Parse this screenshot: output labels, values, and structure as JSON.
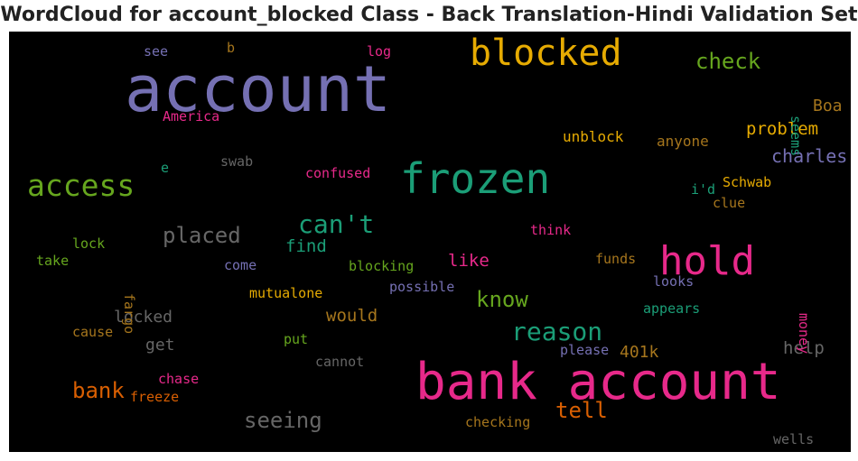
{
  "chart_data": {
    "type": "wordcloud",
    "title": "WordCloud for account_blocked Class - Back Translation-Hindi Validation Set",
    "background": "#000000",
    "colormap": "Dark2",
    "words": [
      {
        "text": "account",
        "color": "#7570b3"
      },
      {
        "text": "blocked",
        "color": "#e6ab02"
      },
      {
        "text": "bank account",
        "color": "#e7298a"
      },
      {
        "text": "frozen",
        "color": "#1b9e77"
      },
      {
        "text": "hold",
        "color": "#e7298a"
      },
      {
        "text": "access",
        "color": "#66a61e"
      },
      {
        "text": "can't",
        "color": "#1b9e77"
      },
      {
        "text": "reason",
        "color": "#1b9e77"
      },
      {
        "text": "check",
        "color": "#66a61e"
      },
      {
        "text": "placed",
        "color": "#666666"
      },
      {
        "text": "seeing",
        "color": "#666666"
      },
      {
        "text": "know",
        "color": "#66a61e"
      },
      {
        "text": "tell",
        "color": "#d95f02"
      },
      {
        "text": "bank",
        "color": "#d95f02"
      },
      {
        "text": "charles",
        "color": "#7570b3"
      },
      {
        "text": "problem",
        "color": "#e6ab02"
      },
      {
        "text": "Boa",
        "color": "#a6761d"
      },
      {
        "text": "would",
        "color": "#a6761d"
      },
      {
        "text": "locked",
        "color": "#666666"
      },
      {
        "text": "like",
        "color": "#e7298a"
      },
      {
        "text": "find",
        "color": "#1b9e77"
      },
      {
        "text": "help",
        "color": "#666666"
      },
      {
        "text": "401k",
        "color": "#a6761d"
      },
      {
        "text": "get",
        "color": "#666666"
      },
      {
        "text": "unblock",
        "color": "#e6ab02"
      },
      {
        "text": "anyone",
        "color": "#a6761d"
      },
      {
        "text": "seems",
        "color": "#1b9e77"
      },
      {
        "text": "Schwab",
        "color": "#e6ab02"
      },
      {
        "text": "i'd",
        "color": "#1b9e77"
      },
      {
        "text": "clue",
        "color": "#a6761d"
      },
      {
        "text": "money",
        "color": "#e7298a"
      },
      {
        "text": "confused",
        "color": "#e7298a"
      },
      {
        "text": "America",
        "color": "#e7298a"
      },
      {
        "text": "think",
        "color": "#e7298a"
      },
      {
        "text": "funds",
        "color": "#a6761d"
      },
      {
        "text": "looks",
        "color": "#7570b3"
      },
      {
        "text": "appears",
        "color": "#1b9e77"
      },
      {
        "text": "blocking",
        "color": "#66a61e"
      },
      {
        "text": "possible",
        "color": "#7570b3"
      },
      {
        "text": "mutualone",
        "color": "#e6ab02"
      },
      {
        "text": "please",
        "color": "#7570b3"
      },
      {
        "text": "put",
        "color": "#66a61e"
      },
      {
        "text": "cannot",
        "color": "#666666"
      },
      {
        "text": "checking",
        "color": "#a6761d"
      },
      {
        "text": "chase",
        "color": "#e7298a"
      },
      {
        "text": "freeze",
        "color": "#d95f02"
      },
      {
        "text": "cause",
        "color": "#a6761d"
      },
      {
        "text": "fargo",
        "color": "#a6761d"
      },
      {
        "text": "lock",
        "color": "#66a61e"
      },
      {
        "text": "take",
        "color": "#66a61e"
      },
      {
        "text": "come",
        "color": "#7570b3"
      },
      {
        "text": "swab",
        "color": "#666666"
      },
      {
        "text": "e",
        "color": "#1b9e77"
      },
      {
        "text": "see",
        "color": "#7570b3"
      },
      {
        "text": "b",
        "color": "#a6761d"
      },
      {
        "text": "log",
        "color": "#e7298a"
      },
      {
        "text": "wells",
        "color": "#666666"
      }
    ]
  }
}
